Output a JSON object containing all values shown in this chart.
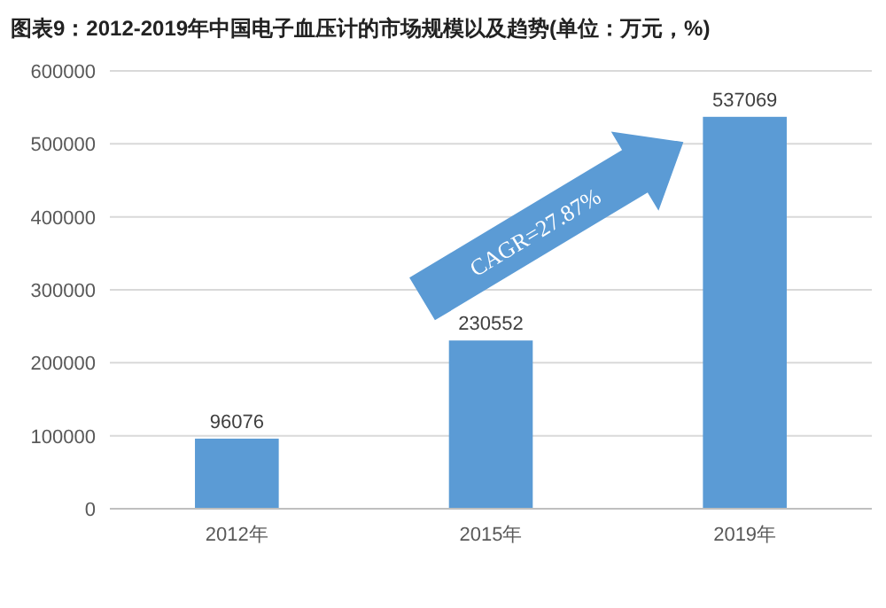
{
  "chart_data": {
    "type": "bar",
    "title": "图表9：2012-2019年中国电子血压计的市场规模以及趋势(单位：万元，%)",
    "categories": [
      "2012年",
      "2015年",
      "2019年"
    ],
    "values": [
      96076,
      230552,
      537069
    ],
    "color": "#5b9bd5",
    "ylim": [
      0,
      600000
    ],
    "yticks": [
      0,
      100000,
      200000,
      300000,
      400000,
      500000,
      600000
    ],
    "grid": "y",
    "data_labels": true,
    "annotations": [
      "CAGR=27.87%"
    ]
  }
}
